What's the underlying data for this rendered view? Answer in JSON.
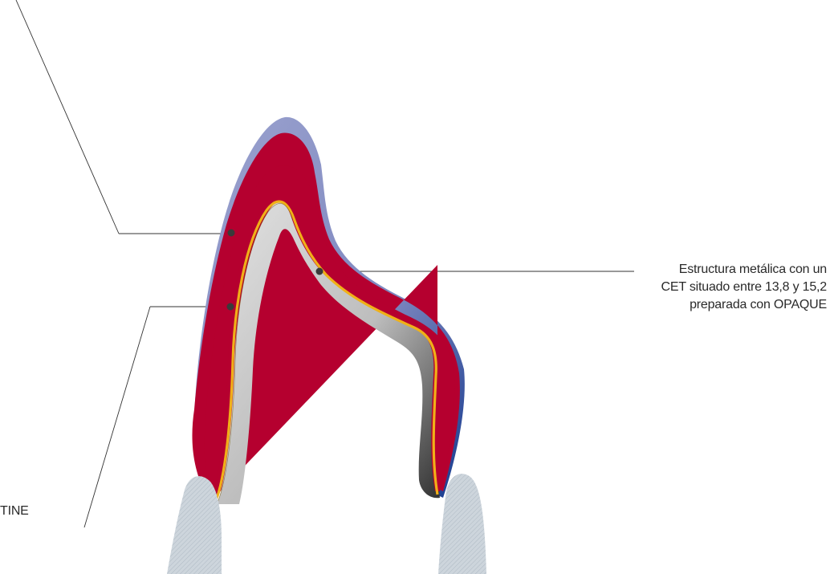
{
  "annotations": {
    "right_callout": {
      "lines": [
        "Estructura metálica con un",
        "CET situado entre 13,8 y 15,2",
        "preparada con OPAQUE"
      ]
    },
    "bottom_left_callout": {
      "text": "TINE"
    }
  },
  "colors": {
    "enamel_layer": "#8a94c6",
    "enamel_layer_dark": "#1f3e8c",
    "dentine_layer": "#b8002e",
    "opaque_line": "#f2b21c",
    "metal_structure_light": "#d3d3d3",
    "metal_structure_dark": "#3a3a3a",
    "abutment_tooth": "#c5ced6",
    "leader_line": "#333333",
    "marker_dot": "#3a3a3a"
  }
}
